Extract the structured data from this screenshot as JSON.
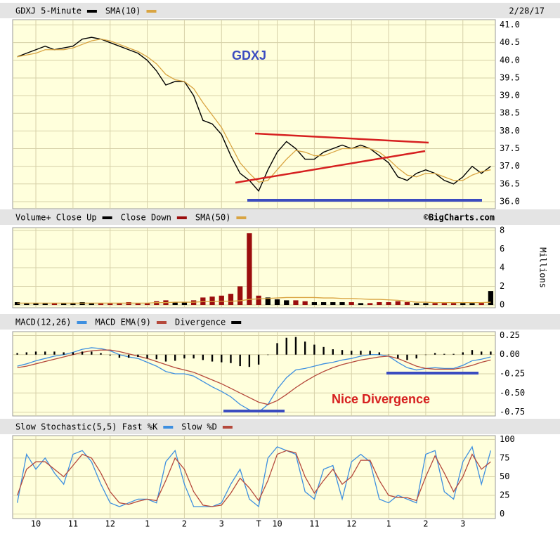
{
  "chart_data": [
    {
      "type": "line",
      "date": "2/28/17",
      "annotation": "GDXJ",
      "ylim": [
        35.8,
        41.15
      ],
      "yticks": [
        {
          "value": 36,
          "label": "36.0"
        },
        36.5,
        {
          "value": 37,
          "label": "37.0"
        },
        37.5,
        {
          "value": 38,
          "label": "38.0"
        },
        38.5,
        {
          "value": 39,
          "label": "39.0"
        },
        39.5,
        {
          "value": 40,
          "label": "40.0"
        },
        40.5,
        {
          "value": 41,
          "label": "41.0"
        }
      ],
      "grid": true,
      "series": [
        {
          "name": "GDXJ 5-Minute",
          "color": "#000000",
          "values": [
            40.1,
            40.2,
            40.3,
            40.4,
            40.3,
            40.35,
            40.4,
            40.6,
            40.65,
            40.6,
            40.5,
            40.4,
            40.3,
            40.2,
            40.0,
            39.7,
            39.3,
            39.4,
            39.4,
            39.0,
            38.3,
            38.2,
            37.9,
            37.3,
            36.8,
            36.6,
            36.3,
            36.9,
            37.4,
            37.7,
            37.5,
            37.2,
            37.2,
            37.4,
            37.5,
            37.6,
            37.5,
            37.6,
            37.5,
            37.3,
            37.1,
            36.7,
            36.6,
            36.8,
            36.9,
            36.8,
            36.6,
            36.5,
            36.7,
            37.0,
            36.8,
            37.0
          ]
        },
        {
          "name": "SMA(10)",
          "color": "#d9a441",
          "values": [
            40.1,
            40.15,
            40.2,
            40.3,
            40.3,
            40.3,
            40.35,
            40.45,
            40.55,
            40.6,
            40.55,
            40.45,
            40.35,
            40.25,
            40.1,
            39.9,
            39.6,
            39.45,
            39.4,
            39.2,
            38.8,
            38.45,
            38.1,
            37.6,
            37.1,
            36.8,
            36.55,
            36.6,
            36.9,
            37.2,
            37.45,
            37.4,
            37.3,
            37.3,
            37.4,
            37.5,
            37.5,
            37.55,
            37.5,
            37.4,
            37.2,
            36.95,
            36.75,
            36.7,
            36.8,
            36.8,
            36.7,
            36.6,
            36.6,
            36.75,
            36.85,
            36.9
          ]
        }
      ]
    },
    {
      "type": "bar",
      "source": "©BigCharts.com",
      "ylabel": "Millions",
      "ylim": [
        -0.3,
        8.3
      ],
      "yticks": [
        0,
        2,
        4,
        6,
        8
      ],
      "grid": true,
      "series": [
        {
          "name": "Volume+ Close Up",
          "color": "#000000",
          "type": "bar",
          "values": [
            0.3,
            0.2,
            0.2,
            0.2,
            null,
            0.2,
            0.2,
            0.3,
            0.2,
            null,
            null,
            null,
            null,
            null,
            null,
            null,
            null,
            0.3,
            0.3,
            null,
            null,
            null,
            null,
            null,
            null,
            null,
            null,
            0.8,
            0.6,
            0.5,
            null,
            null,
            0.3,
            0.3,
            0.3,
            0.3,
            null,
            0.2,
            null,
            null,
            null,
            null,
            null,
            0.2,
            0.2,
            null,
            null,
            null,
            0.2,
            0.2,
            null,
            1.5
          ]
        },
        {
          "name": "Close Down",
          "color": "#9b0d0d",
          "type": "bar",
          "values": [
            null,
            null,
            null,
            null,
            0.2,
            null,
            null,
            null,
            null,
            0.2,
            0.2,
            0.2,
            0.3,
            0.2,
            0.2,
            0.4,
            0.5,
            null,
            null,
            0.5,
            0.8,
            0.9,
            1.0,
            1.2,
            2.0,
            7.7,
            1.0,
            null,
            null,
            null,
            0.5,
            0.4,
            null,
            null,
            null,
            null,
            0.3,
            null,
            0.2,
            0.3,
            0.3,
            0.4,
            0.3,
            null,
            null,
            0.2,
            0.2,
            0.2,
            null,
            null,
            0.3,
            null
          ]
        },
        {
          "name": "SMA(50)",
          "color": "#d9a441",
          "type": "line",
          "values": [
            0.2,
            0.2,
            0.2,
            0.2,
            0.2,
            0.2,
            0.2,
            0.2,
            0.2,
            0.2,
            0.2,
            0.2,
            0.2,
            0.2,
            0.2,
            0.25,
            0.25,
            0.3,
            0.3,
            0.3,
            0.35,
            0.35,
            0.4,
            0.4,
            0.45,
            0.6,
            0.65,
            0.7,
            0.75,
            0.8,
            0.8,
            0.8,
            0.8,
            0.75,
            0.75,
            0.7,
            0.7,
            0.65,
            0.6,
            0.6,
            0.55,
            0.5,
            0.4,
            0.3,
            0.3,
            0.25,
            0.25,
            0.25,
            0.25,
            0.25,
            0.25,
            0.3
          ]
        }
      ]
    },
    {
      "type": "line",
      "annotation": "Nice Divergence",
      "ylim": [
        -0.8,
        0.3
      ],
      "yticks": [
        0.25,
        {
          "value": 0,
          "label": "0.00"
        },
        -0.25,
        {
          "value": -0.5,
          "label": "-0.50"
        },
        -0.75
      ],
      "grid": true,
      "series": [
        {
          "name": "MACD(12,26)",
          "color": "#3d8fe0",
          "type": "line",
          "values": [
            -0.15,
            -0.12,
            -0.08,
            -0.05,
            -0.02,
            0,
            0.03,
            0.07,
            0.09,
            0.08,
            0.05,
            0,
            -0.03,
            -0.05,
            -0.1,
            -0.15,
            -0.22,
            -0.25,
            -0.25,
            -0.28,
            -0.35,
            -0.42,
            -0.48,
            -0.55,
            -0.65,
            -0.72,
            -0.75,
            -0.65,
            -0.45,
            -0.3,
            -0.2,
            -0.18,
            -0.15,
            -0.12,
            -0.1,
            -0.07,
            -0.05,
            -0.02,
            0,
            0,
            -0.02,
            -0.1,
            -0.17,
            -0.2,
            -0.18,
            -0.17,
            -0.18,
            -0.18,
            -0.14,
            -0.08,
            -0.06,
            -0.03
          ]
        },
        {
          "name": "MACD EMA(9)",
          "color": "#b5493c",
          "type": "line",
          "values": [
            -0.17,
            -0.15,
            -0.12,
            -0.09,
            -0.06,
            -0.03,
            0,
            0.03,
            0.05,
            0.06,
            0.06,
            0.04,
            0.01,
            -0.02,
            -0.05,
            -0.09,
            -0.13,
            -0.17,
            -0.2,
            -0.23,
            -0.28,
            -0.33,
            -0.38,
            -0.44,
            -0.5,
            -0.56,
            -0.62,
            -0.65,
            -0.6,
            -0.52,
            -0.43,
            -0.35,
            -0.28,
            -0.22,
            -0.17,
            -0.13,
            -0.1,
            -0.07,
            -0.05,
            -0.03,
            -0.02,
            -0.05,
            -0.1,
            -0.15,
            -0.18,
            -0.19,
            -0.19,
            -0.19,
            -0.17,
            -0.14,
            -0.1,
            -0.07
          ]
        },
        {
          "name": "Divergence",
          "color": "#000000",
          "type": "bar",
          "values": [
            0.02,
            0.03,
            0.04,
            0.04,
            0.04,
            0.03,
            0.03,
            0.04,
            0.04,
            0.02,
            -0.01,
            -0.04,
            -0.04,
            -0.03,
            -0.05,
            -0.06,
            -0.09,
            -0.08,
            -0.05,
            -0.05,
            -0.07,
            -0.09,
            -0.1,
            -0.11,
            -0.15,
            -0.16,
            -0.13,
            0,
            0.15,
            0.22,
            0.23,
            0.17,
            0.13,
            0.1,
            0.07,
            0.06,
            0.05,
            0.05,
            0.05,
            0.03,
            0,
            -0.05,
            -0.07,
            -0.05,
            0,
            0.02,
            0.01,
            0.01,
            0.03,
            0.06,
            0.04,
            0.04
          ]
        }
      ]
    },
    {
      "type": "line",
      "categories": [
        null,
        null,
        "10",
        null,
        null,
        null,
        "11",
        null,
        null,
        null,
        "12",
        null,
        null,
        null,
        "1",
        null,
        null,
        null,
        "2",
        null,
        null,
        null,
        "3",
        null,
        null,
        null,
        "T",
        null,
        "10",
        null,
        null,
        null,
        "11",
        null,
        null,
        null,
        "12",
        null,
        null,
        null,
        "1",
        null,
        null,
        null,
        "2",
        null,
        null,
        null,
        "3",
        null,
        null,
        null
      ],
      "ylim": [
        -6,
        105
      ],
      "yticks": [
        0,
        25,
        50,
        75,
        100
      ],
      "grid": true,
      "series": [
        {
          "name": "Slow Stochastic(5,5) Fast %K",
          "color": "#3d8fe0",
          "values": [
            15,
            80,
            60,
            75,
            55,
            40,
            80,
            85,
            70,
            40,
            15,
            10,
            15,
            20,
            20,
            15,
            70,
            85,
            40,
            10,
            10,
            10,
            15,
            40,
            60,
            20,
            10,
            75,
            90,
            85,
            80,
            30,
            20,
            60,
            65,
            20,
            70,
            80,
            70,
            20,
            15,
            25,
            20,
            15,
            80,
            85,
            30,
            20,
            70,
            90,
            40,
            85
          ]
        },
        {
          "name": "Slow %D",
          "color": "#b5493c",
          "values": [
            25,
            60,
            70,
            70,
            60,
            50,
            65,
            80,
            75,
            55,
            30,
            15,
            13,
            17,
            20,
            18,
            45,
            75,
            60,
            30,
            12,
            10,
            12,
            28,
            48,
            35,
            18,
            45,
            80,
            85,
            82,
            50,
            28,
            45,
            60,
            40,
            50,
            72,
            72,
            45,
            25,
            22,
            22,
            18,
            50,
            78,
            55,
            30,
            50,
            80,
            60,
            70
          ]
        }
      ]
    }
  ]
}
